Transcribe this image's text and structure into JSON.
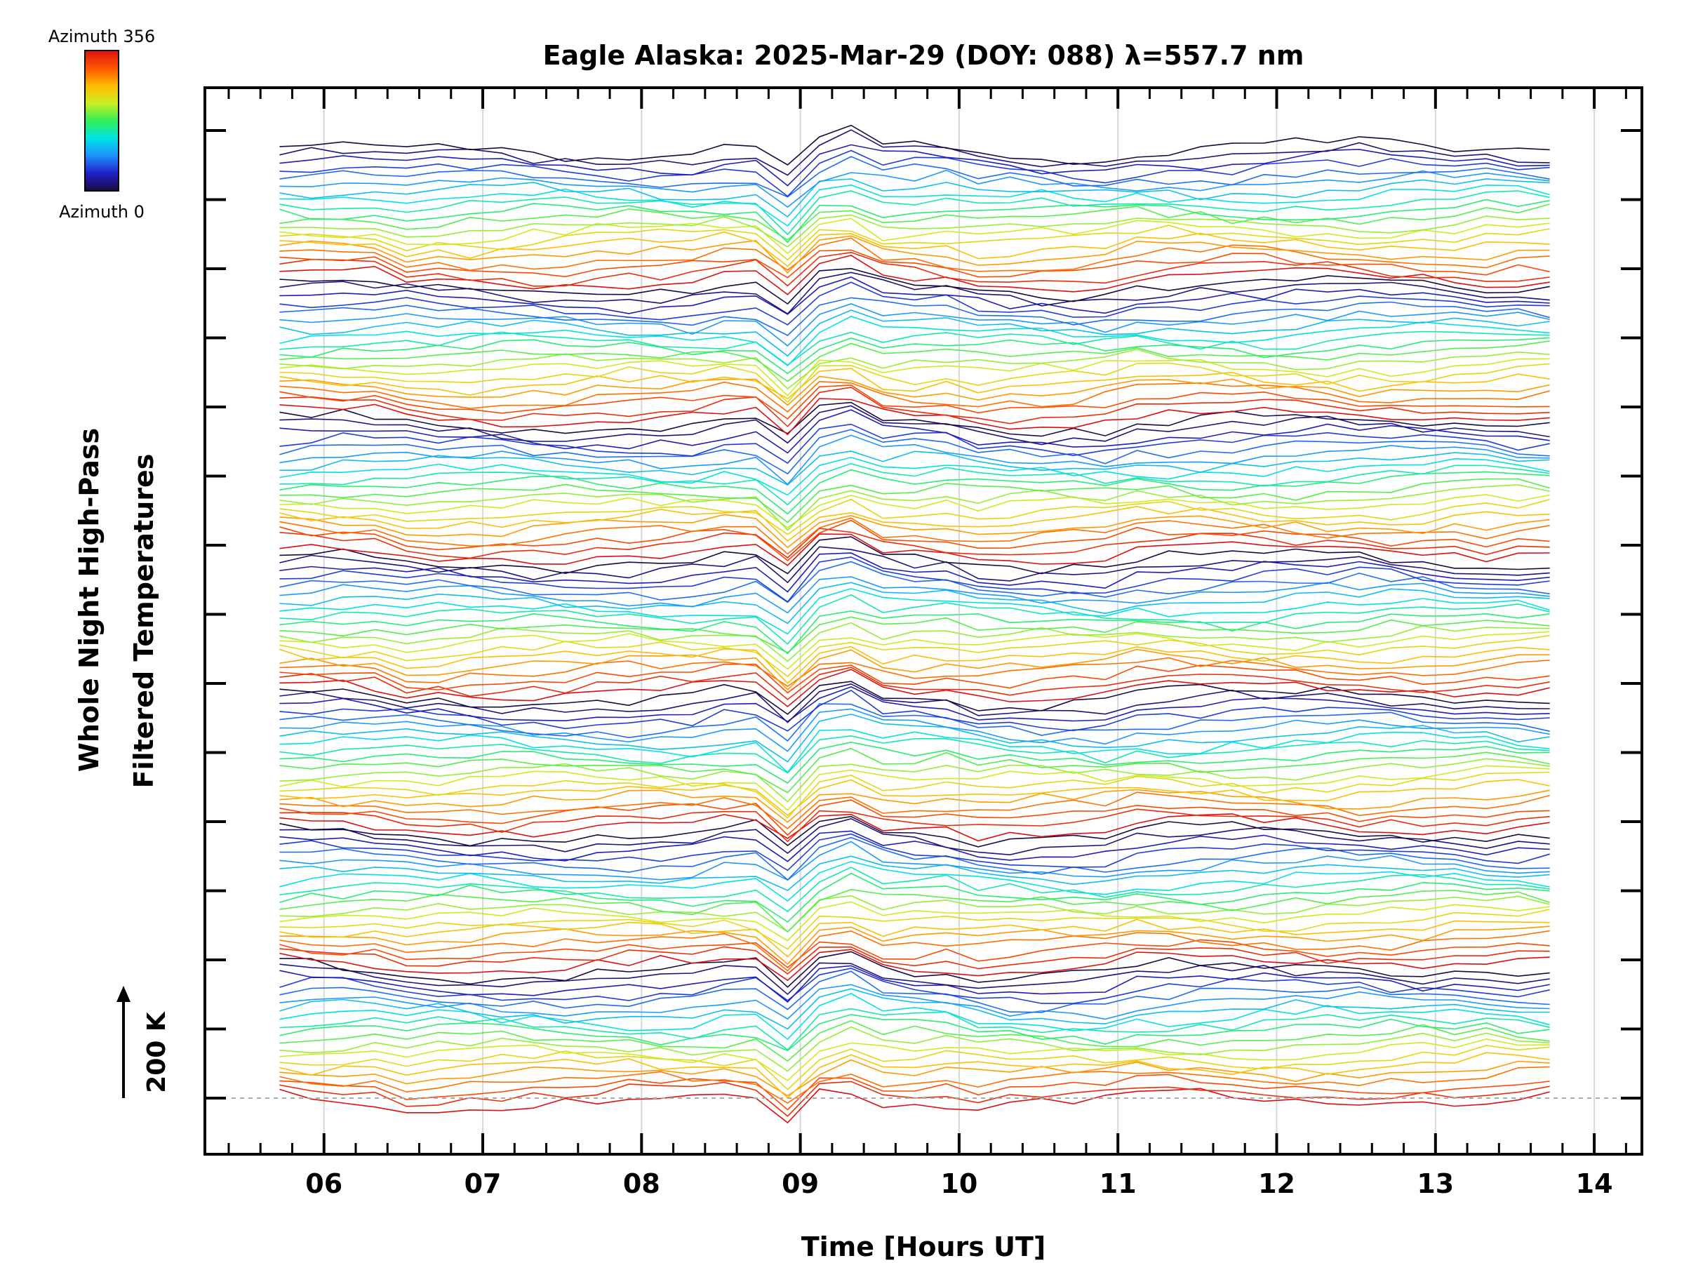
{
  "chart_data": {
    "type": "line",
    "title": "Eagle Alaska: 2025-Mar-29 (DOY: 088) λ=557.7 nm",
    "xlabel": "Time [Hours UT]",
    "ylabel_line1": "Whole Night High-Pass",
    "ylabel_line2": "Filtered Temperatures",
    "xlim": [
      5.25,
      14.3
    ],
    "x_ticks": [
      "06",
      "07",
      "08",
      "09",
      "10",
      "11",
      "12",
      "13",
      "14"
    ],
    "x_tick_values": [
      6,
      7,
      8,
      9,
      10,
      11,
      12,
      13,
      14
    ],
    "scale_bar_label": "200 K",
    "grid": true,
    "colorbar": {
      "top_label": "Azimuth 356",
      "bottom_label": "Azimuth 0",
      "azimuth_min": 0,
      "azimuth_max": 356,
      "colors": [
        "#1a0a40",
        "#2020c8",
        "#1e90ff",
        "#00e5e5",
        "#33ee55",
        "#ccee22",
        "#ffbb00",
        "#ff5500",
        "#dd1010"
      ]
    },
    "groups": 7,
    "traces_per_group": 20,
    "time_start": 5.72,
    "time_end": 13.85,
    "time_step": 0.2,
    "notes_visible_event": "sharp dip near 09 UT",
    "series_description": "stacked high-pass filtered temperature traces, one per azimuth, colored by azimuth"
  }
}
